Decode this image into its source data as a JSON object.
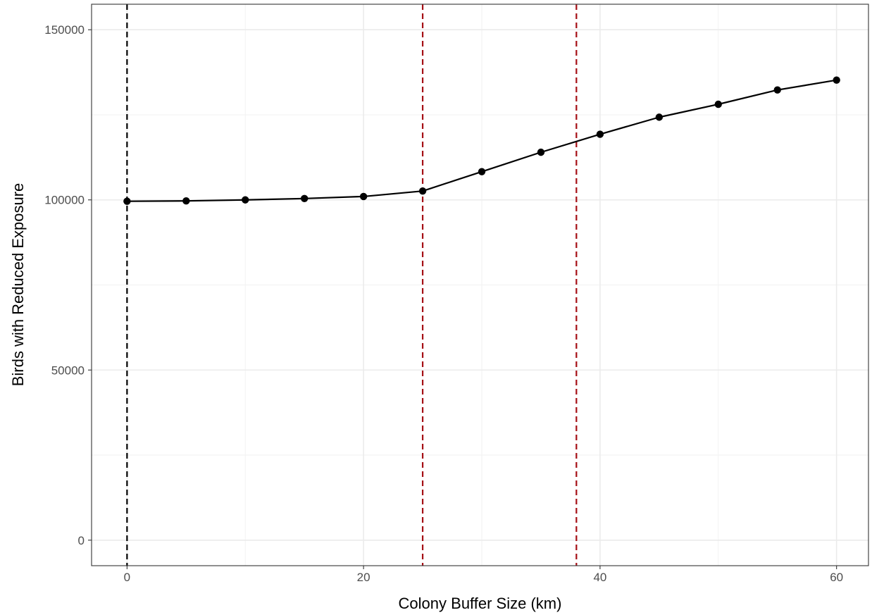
{
  "chart_data": {
    "type": "line",
    "title": "",
    "xlabel": "Colony Buffer Size (km)",
    "ylabel": "Birds with Reduced Exposure",
    "xlim": [
      -3,
      62.7
    ],
    "ylim": [
      -7500,
      157500
    ],
    "x_ticks": [
      0,
      20,
      40,
      60
    ],
    "x_tick_labels": [
      "0",
      "20",
      "40",
      "60"
    ],
    "y_ticks": [
      0,
      50000,
      100000,
      150000
    ],
    "y_tick_labels": [
      "0",
      "50000",
      "100000",
      "150000"
    ],
    "grid": true,
    "legend": "none",
    "series": [
      {
        "x": [
          0,
          5,
          10,
          15,
          20,
          25,
          30,
          35,
          40,
          45,
          50,
          55,
          60
        ],
        "y": [
          99600,
          99700,
          100000,
          100400,
          101000,
          102600,
          108300,
          114000,
          119300,
          124300,
          128100,
          132300,
          135200
        ],
        "color": "#000000"
      }
    ],
    "reference_lines": [
      {
        "x": 0,
        "color": "#000000",
        "style": "dashed"
      },
      {
        "x": 25,
        "color": "#a50f15",
        "style": "dashed"
      },
      {
        "x": 38,
        "color": "#a50f15",
        "style": "dashed"
      }
    ]
  }
}
